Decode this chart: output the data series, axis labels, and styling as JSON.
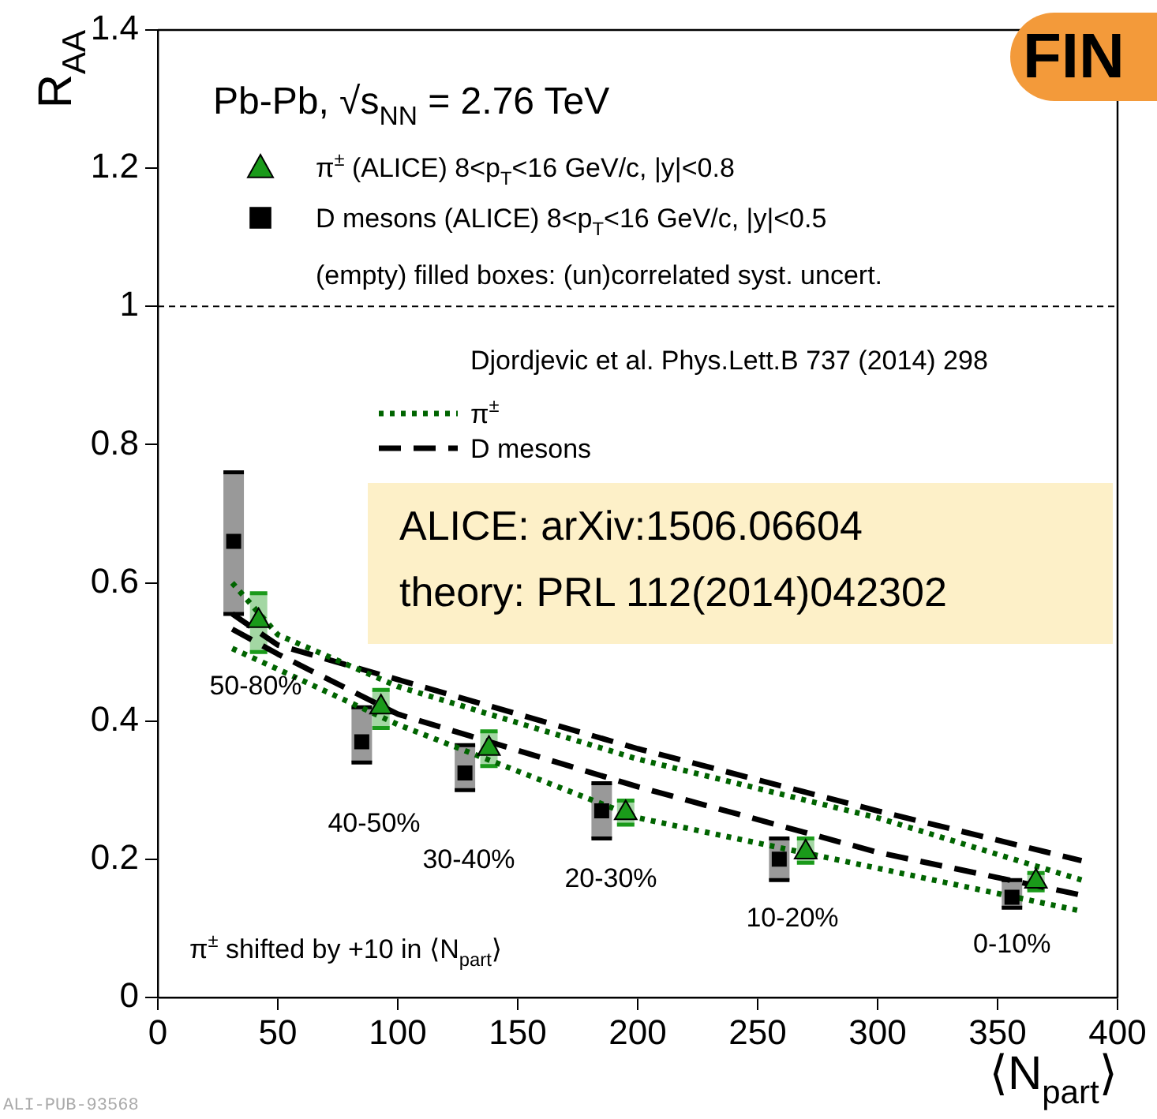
{
  "chart_data": {
    "type": "scatter",
    "title": "Pb-Pb, √s$_{NN}$ = 2.76 TeV",
    "xlabel": "⟨N$_{part}$⟩",
    "ylabel": "R$_{AA}$",
    "legend_title": "Djordjevic et al. Phys.Lett.B 737 (2014) 298",
    "xlim": [
      0,
      400
    ],
    "ylim": [
      0,
      1.4
    ],
    "xticks": [
      0,
      50,
      100,
      150,
      200,
      250,
      300,
      350,
      400
    ],
    "yticks": [
      0,
      0.2,
      0.4,
      0.6,
      0.8,
      1,
      1.2,
      1.4
    ],
    "legend": "top left",
    "ref_lines": [
      {
        "axis": "y",
        "value": 1,
        "line_style": "dashed",
        "color": "#000000"
      }
    ],
    "series": [
      {
        "name": "π$^{±}$ (ALICE) 8<p$_{T}$<16 GeV/c, |y|<0.8",
        "type": "scatter",
        "marker": "triangle",
        "color": "#1a9a1a",
        "x": [
          42,
          93,
          138,
          195,
          270,
          366
        ],
        "values": [
          0.545,
          0.42,
          0.36,
          0.267,
          0.21,
          0.168
        ],
        "errors": [
          [
            0.5,
            0.585
          ],
          [
            0.39,
            0.445
          ],
          [
            0.335,
            0.385
          ],
          [
            0.25,
            0.285
          ],
          [
            0.195,
            0.23
          ],
          [
            0.155,
            0.18
          ]
        ]
      },
      {
        "name": "D mesons (ALICE) 8<p$_{T}$<16 GeV/c, |y|<0.5",
        "type": "scatter",
        "marker": "square",
        "color": "#000000",
        "x": [
          31.6,
          85,
          128,
          185,
          259,
          356
        ],
        "values": [
          0.66,
          0.37,
          0.325,
          0.27,
          0.2,
          0.145
        ],
        "errors": [
          [
            0.555,
            0.76
          ],
          [
            0.34,
            0.42
          ],
          [
            0.3,
            0.365
          ],
          [
            0.23,
            0.31
          ],
          [
            0.17,
            0.23
          ],
          [
            0.13,
            0.17
          ]
        ]
      },
      {
        "name": "π$^{±}$",
        "type": "line",
        "line_style": "dotted",
        "color": "#006400",
        "x": [
          31,
          50,
          100,
          200,
          300,
          385
        ],
        "values": [
          0.6,
          0.525,
          0.45,
          0.345,
          0.26,
          0.17
        ]
      },
      {
        "type": "line",
        "line_style": "dotted",
        "color": "#006400",
        "x": [
          31,
          50,
          100,
          200,
          300,
          385
        ],
        "values": [
          0.505,
          0.475,
          0.395,
          0.26,
          0.187,
          0.125
        ]
      },
      {
        "name": "D mesons",
        "type": "line",
        "line_style": "dashed",
        "color": "#000000",
        "x": [
          31,
          50,
          100,
          200,
          300,
          385
        ],
        "values": [
          0.555,
          0.51,
          0.46,
          0.36,
          0.27,
          0.198
        ]
      },
      {
        "type": "line",
        "line_style": "dashed",
        "color": "#000000",
        "x": [
          31,
          50,
          100,
          200,
          300,
          385
        ],
        "values": [
          0.533,
          0.497,
          0.41,
          0.305,
          0.21,
          0.148
        ]
      }
    ],
    "annotations": [
      "(empty) filled boxes: (un)correlated syst. uncert.",
      "ALICE: arXiv:1506.06604",
      "theory: PRL 112(2014)042302",
      "π$^{±}$ shifted by +10 in ⟨N$_{part}$⟩",
      "ALI-PUB-93568",
      "FIN",
      "50-80%",
      "40-50%",
      "30-40%",
      "20-30%",
      "10-20%",
      {
        "text": "0-10%",
        "x": 356,
        "y": 0.145
      }
    ]
  }
}
